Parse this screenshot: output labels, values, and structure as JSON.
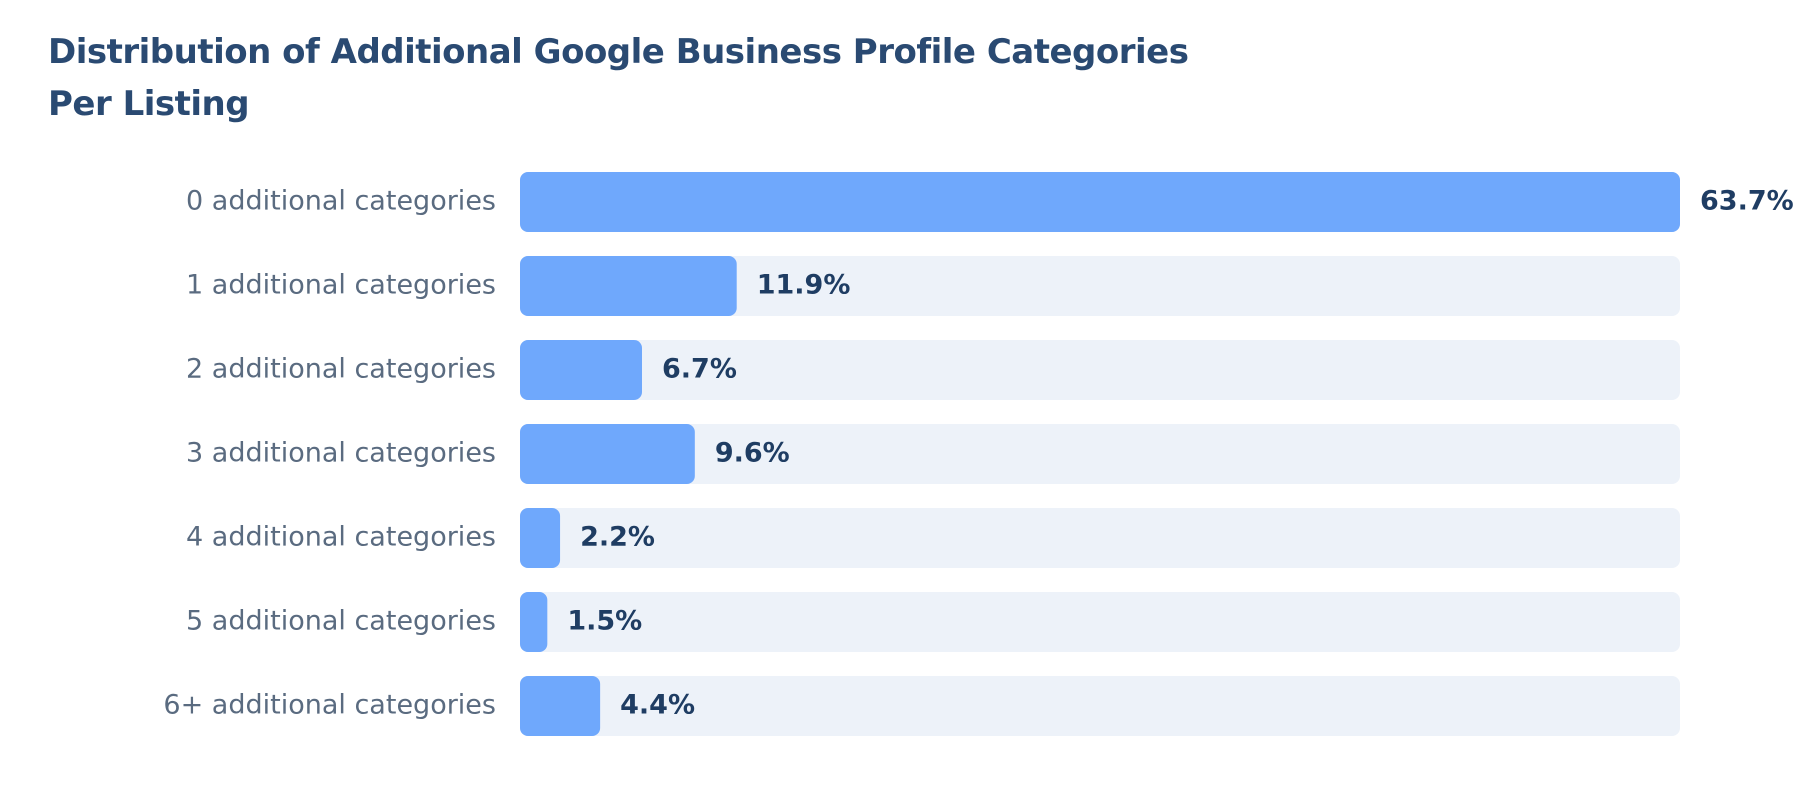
{
  "chart_data": {
    "type": "hbar",
    "title": "Distribution of Additional Google Business Profile Categories Per Listing",
    "categories": [
      "0 additional categories",
      "1 additional categories",
      "2 additional categories",
      "3 additional categories",
      "4 additional categories",
      "5 additional categories",
      "6+ additional categories"
    ],
    "values": [
      63.7,
      11.9,
      6.7,
      9.6,
      2.2,
      1.5,
      4.4
    ],
    "value_labels": [
      "63.7%",
      "11.9%",
      "6.7%",
      "9.6%",
      "2.2%",
      "1.5%",
      "4.4%"
    ],
    "color": "#6fa8fc",
    "xlim": [
      0,
      63.7
    ]
  }
}
